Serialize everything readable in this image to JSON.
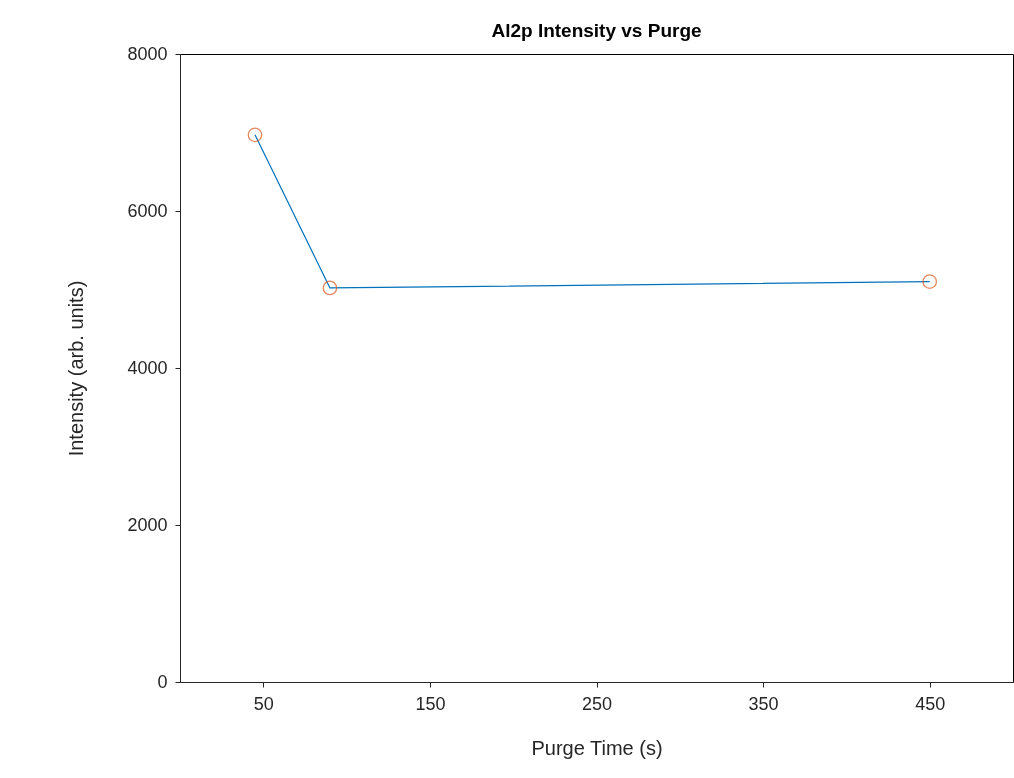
{
  "chart_data": {
    "type": "line",
    "title": "Al2p Intensity vs Purge",
    "xlabel": "Purge Time (s)",
    "ylabel": "Intensity (arb. units)",
    "x": [
      45,
      90,
      450
    ],
    "series": [
      {
        "color": "#0072bd",
        "marker": "none",
        "values": [
          6970,
          5020,
          5100
        ]
      },
      {
        "type": "scatter",
        "color": "#d95319",
        "marker": "circle",
        "values": [
          6970,
          5020,
          5100
        ]
      }
    ],
    "xlim": [
      0,
      500
    ],
    "xticks": [
      50,
      150,
      250,
      350,
      450
    ],
    "ylim": [
      0,
      8000
    ],
    "yticks": [
      0,
      2000,
      4000,
      6000,
      8000
    ],
    "grid": false
  }
}
